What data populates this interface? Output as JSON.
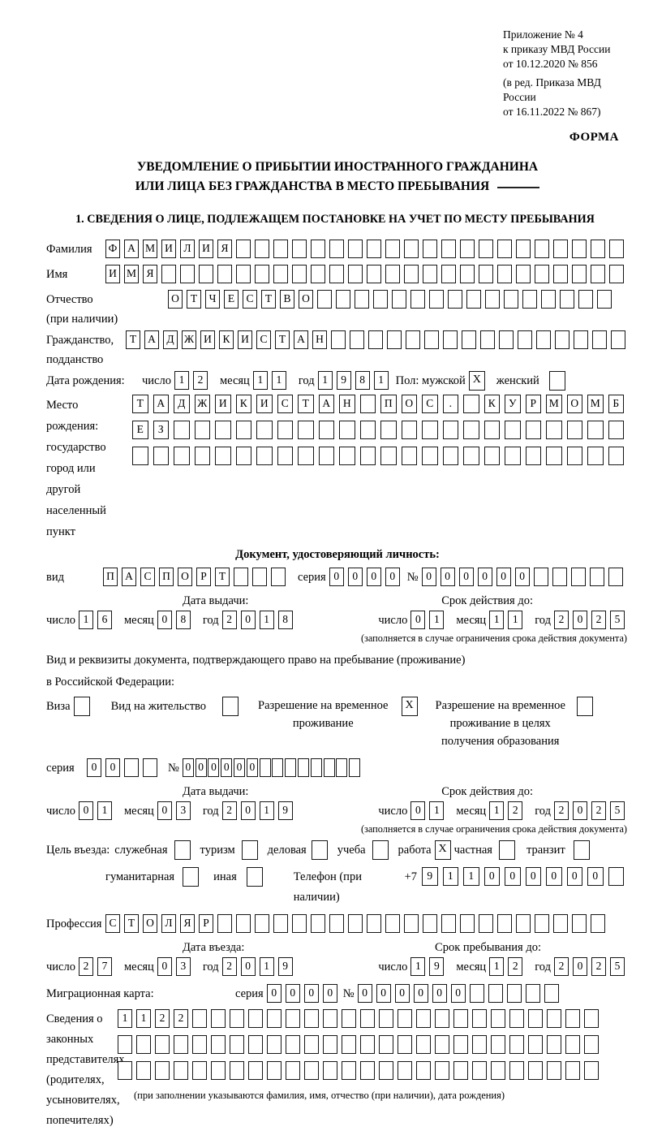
{
  "header": {
    "appendix_lines": [
      "Приложение № 4",
      "к приказу МВД России",
      "от 10.12.2020 № 856"
    ],
    "revision_lines": [
      "(в ред. Приказа МВД России",
      "от 16.11.2022 № 867)"
    ],
    "form_label": "ФОРМА"
  },
  "title": {
    "line1": "УВЕДОМЛЕНИЕ О ПРИБЫТИИ ИНОСТРАННОГО ГРАЖДАНИНА",
    "line2": "ИЛИ ЛИЦА БЕЗ ГРАЖДАНСТВА В МЕСТО ПРЕБЫВАНИЯ"
  },
  "section1_heading": "1. СВЕДЕНИЯ О ЛИЦЕ, ПОДЛЕЖАЩЕМ ПОСТАНОВКЕ НА УЧЕТ ПО МЕСТУ ПРЕБЫВАНИЯ",
  "labels": {
    "number": "число",
    "month": "месяц",
    "year": "год",
    "seria": "серия",
    "num_sign": "№"
  },
  "surname": {
    "label": "Фамилия",
    "cells": {
      "value": "ФАМИЛИЯ",
      "length": 28
    }
  },
  "first_name": {
    "label": "Имя",
    "cells": {
      "value": "ИМЯ",
      "length": 28
    }
  },
  "patronymic": {
    "label": "Отчество",
    "label2": "(при наличии)",
    "cells": {
      "value": "ОТЧЕСТВО",
      "length": 24
    }
  },
  "citizenship": {
    "label": "Гражданство,",
    "label2": "подданство",
    "cells": {
      "value": "ТАДЖИКИСТАН",
      "length": 27
    }
  },
  "birth_date": {
    "label": "Дата рождения:",
    "day": {
      "value": "12",
      "length": 2
    },
    "month": {
      "value": "11",
      "length": 2
    },
    "year": {
      "value": "1981",
      "length": 4
    },
    "sex_label": "Пол:",
    "male_label": "мужской",
    "male_mark": {
      "value": "X",
      "length": 1
    },
    "female_label": "женский",
    "female_mark": {
      "value": "",
      "length": 1
    }
  },
  "birth_place": {
    "label1": "Место рождения:",
    "label2": "государство",
    "label3": "город или другой",
    "label4": "населенный пункт",
    "row1": {
      "value": "ТАДЖИКИСТАН ПОС. КУРМОМБ",
      "length": 24
    },
    "row2": {
      "value": "ЕЗ",
      "length": 24
    },
    "row3": {
      "value": "",
      "length": 24
    }
  },
  "identity_doc": {
    "heading": "Документ, удостоверяющий личность:",
    "type_label": "вид",
    "type": {
      "value": "ПАСПОРТ",
      "length": 10
    },
    "seria": {
      "value": "0000",
      "length": 4
    },
    "number": {
      "value": "000000",
      "length": 11
    }
  },
  "identity_issue": {
    "issued_label": "Дата выдачи:",
    "valid_label": "Срок действия до:",
    "issued_day": {
      "value": "16",
      "length": 2
    },
    "issued_month": {
      "value": "08",
      "length": 2
    },
    "issued_year": {
      "value": "2018",
      "length": 4
    },
    "valid_day": {
      "value": "01",
      "length": 2
    },
    "valid_month": {
      "value": "11",
      "length": 2
    },
    "valid_year": {
      "value": "2025",
      "length": 4
    },
    "note": "(заполняется в случае ограничения срока действия документа)"
  },
  "residence_doc": {
    "line1": "Вид и реквизиты документа, подтверждающего право на пребывание (проживание)",
    "line2": "в Российской Федерации:",
    "visa_label": "Виза",
    "visa_mark": {
      "value": "",
      "length": 1
    },
    "permit_label": "Вид на жительство",
    "permit_mark": {
      "value": "",
      "length": 1
    },
    "rvp_label1": "Разрешение на временное",
    "rvp_label2": "проживание",
    "rvp_mark": {
      "value": "X",
      "length": 1
    },
    "rvpo_label1": "Разрешение на временное",
    "rvpo_label2": "проживание в целях",
    "rvpo_label3": "получения образования",
    "rvpo_mark": {
      "value": "",
      "length": 1
    },
    "seria": {
      "value": "00",
      "length": 4
    },
    "number": {
      "value": "000000",
      "length": 14
    }
  },
  "residence_issue": {
    "issued_label": "Дата выдачи:",
    "valid_label": "Срок действия до:",
    "issued_day": {
      "value": "01",
      "length": 2
    },
    "issued_month": {
      "value": "03",
      "length": 2
    },
    "issued_year": {
      "value": "2019",
      "length": 4
    },
    "valid_day": {
      "value": "01",
      "length": 2
    },
    "valid_month": {
      "value": "12",
      "length": 2
    },
    "valid_year": {
      "value": "2025",
      "length": 4
    },
    "note": "(заполняется в случае ограничения срока действия документа)"
  },
  "purpose": {
    "label": "Цель въезда:",
    "options": [
      {
        "label": "служебная",
        "mark": {
          "value": "",
          "length": 1
        }
      },
      {
        "label": "туризм",
        "mark": {
          "value": "",
          "length": 1
        }
      },
      {
        "label": "деловая",
        "mark": {
          "value": "",
          "length": 1
        }
      },
      {
        "label": "учеба",
        "mark": {
          "value": "",
          "length": 1
        }
      },
      {
        "label": "работа",
        "mark": {
          "value": "X",
          "length": 1
        }
      },
      {
        "label": "частная",
        "mark": {
          "value": "",
          "length": 1
        }
      },
      {
        "label": "транзит",
        "mark": {
          "value": "",
          "length": 1
        }
      }
    ],
    "options2": [
      {
        "label": "гуманитарная",
        "mark": {
          "value": "",
          "length": 1
        }
      },
      {
        "label": "иная",
        "mark": {
          "value": "",
          "length": 1
        }
      }
    ],
    "phone_label": "Телефон (при наличии)",
    "phone_prefix": "+7",
    "phone": {
      "value": "911000000",
      "length": 10
    }
  },
  "profession": {
    "label": "Профессия",
    "cells": {
      "value": "СТОЛЯР",
      "length": 27
    }
  },
  "entry": {
    "entry_label": "Дата въезда:",
    "stay_label": "Срок пребывания до:",
    "entry_day": {
      "value": "27",
      "length": 2
    },
    "entry_month": {
      "value": "03",
      "length": 2
    },
    "entry_year": {
      "value": "2019",
      "length": 4
    },
    "stay_day": {
      "value": "19",
      "length": 2
    },
    "stay_month": {
      "value": "12",
      "length": 2
    },
    "stay_year": {
      "value": "2025",
      "length": 4
    }
  },
  "migration_card": {
    "label": "Миграционная карта:",
    "seria": {
      "value": "0000",
      "length": 4
    },
    "number": {
      "value": "000000",
      "length": 11
    }
  },
  "representatives": {
    "label_lines": [
      "Сведения о",
      "законных",
      "представителях",
      "(родителях,",
      "усыновителях,",
      "попечителях)"
    ],
    "row1": {
      "value": "1122",
      "length": 26
    },
    "row2": {
      "value": "",
      "length": 26
    },
    "row3": {
      "value": "",
      "length": 26
    },
    "note": "(при заполнении указываются фамилия, имя, отчество (при наличии), дата рождения)"
  }
}
